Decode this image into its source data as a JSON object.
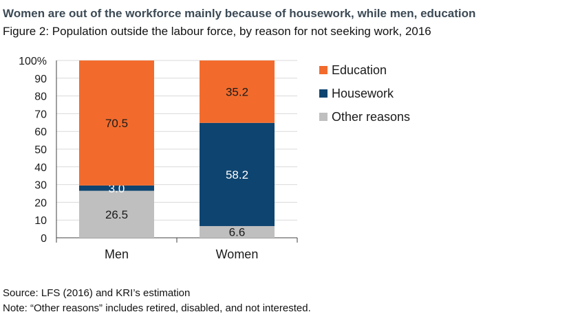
{
  "headline": "Women are out of the workforce mainly because of housework, while men, education",
  "subtitle": "Figure 2: Population outside the labour force, by reason for not seeking work, 2016",
  "footer": {
    "source": "Source: LFS (2016) and KRI’s estimation",
    "note": "Note: “Other reasons” includes retired, disabled, and not interested."
  },
  "chart_data": {
    "type": "bar",
    "stacked": true,
    "categories": [
      "Men",
      "Women"
    ],
    "series": [
      {
        "name": "Other reasons",
        "values": [
          26.5,
          6.6
        ],
        "color": "#bfbfbf",
        "label_color": "#1a1a1a"
      },
      {
        "name": "Housework",
        "values": [
          3.0,
          58.2
        ],
        "color": "#0e4470",
        "label_color": "#ffffff"
      },
      {
        "name": "Education",
        "values": [
          70.5,
          35.2
        ],
        "color": "#f26b2c",
        "label_color": "#1a1a1a"
      }
    ],
    "legend_order": [
      "Education",
      "Housework",
      "Other reasons"
    ],
    "ylim": [
      0,
      100
    ],
    "yticks": [
      "0",
      "10",
      "20",
      "30",
      "40",
      "50",
      "60",
      "70",
      "80",
      "90",
      "100%"
    ],
    "grid": true,
    "legend_position": "right"
  }
}
